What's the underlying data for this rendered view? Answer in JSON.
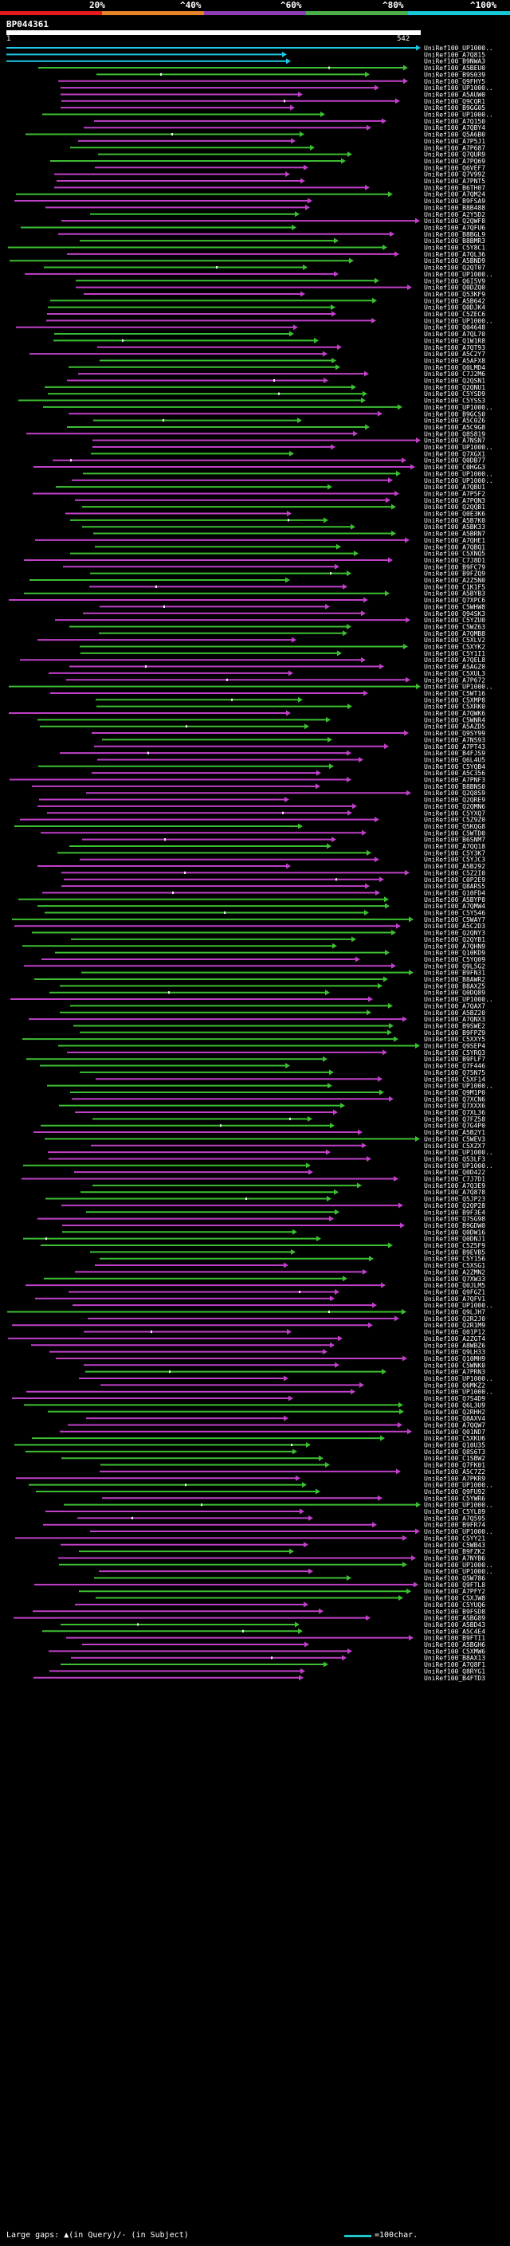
{
  "legend": {
    "labels": [
      "20%",
      "^40%",
      "^60%",
      "^80%",
      "^100%"
    ],
    "colors": [
      "#e41a1c",
      "#e7842a",
      "#8e3fb6",
      "#4daf4a",
      "#17c8d6"
    ]
  },
  "query": {
    "name": "BP044361",
    "start": "1",
    "end": "542"
  },
  "footer": {
    "text": "Large gaps: ▲(in Query)/- (in Subject)",
    "scale": "=100char."
  },
  "colors": {
    "cyan": "#1ec8e6",
    "green": "#3cbf32",
    "magenta": "#c040c8",
    "gap": "#ffffff"
  },
  "chart_data": {
    "type": "alignment-hits",
    "query_length": 542,
    "labels": [
      "UniRef100_UP1000..",
      "UniRef100_A7Q815",
      "UniRef100_B9NWA3",
      "UniRef100_A5BEU0",
      "UniRef100_B9S039",
      "UniRef100_Q9FHY5",
      "UniRef100_UP1000..",
      "UniRef100_A5AUW0",
      "UniRef100_Q9CQR1",
      "UniRef100_B9GG05",
      "UniRef100_UP1000..",
      "UniRef100_A7Q150",
      "UniRef100_A7QBY4",
      "UniRef100_Q5A6B0",
      "UniRef100_A7P5J1",
      "UniRef100_A7P687",
      "UniRef100_Q7QUR9",
      "UniRef100_A7PQ69",
      "UniRef100_Q6VEF7",
      "UniRef100_Q7V992",
      "UniRef100_A7PNT5",
      "UniRef100_B6TH07",
      "UniRef100_A7QM24",
      "UniRef100_B9FSA9",
      "UniRef100_B8B488",
      "UniRef100_A2Y5D2",
      "UniRef100_Q2QWF8",
      "UniRef100_A7QFU6",
      "UniRef100_B8BGL9",
      "UniRef100_B8BMR3",
      "UniRef100_C5Y8C1",
      "UniRef100_A7QL36",
      "UniRef100_A5BND9",
      "UniRef100_Q2QT07",
      "UniRef100_UP1000..",
      "UniRef100_Q6I5V9",
      "UniRef100_Q0DZQ0",
      "UniRef100_Q53KF9",
      "UniRef100_A5B642",
      "UniRef100_Q0DJK4",
      "UniRef100_C5ZEC6",
      "UniRef100_UP1000..",
      "UniRef100_Q04648",
      "UniRef100_A7QL70",
      "UniRef100_Q1W1R8",
      "UniRef100_A7QT93",
      "UniRef100_A5C2Y7",
      "UniRef100_A5AFX8",
      "UniRef100_Q0LMD4",
      "UniRef100_C7J2M6",
      "UniRef100_Q2QSN1",
      "UniRef100_Q2QNU1",
      "UniRef100_C5YSD9",
      "UniRef100_C5YSS3",
      "UniRef100_UP1000..",
      "UniRef100_B9GCS0",
      "UniRef100_A5C0Z6",
      "UniRef100_A5C9G8",
      "UniRef100_Q8S819",
      "UniRef100_A7NSN7",
      "UniRef100_UP1000..",
      "UniRef100_Q7XGX1",
      "UniRef100_Q0DB77",
      "UniRef100_C0HGG3",
      "UniRef100_UP1000..",
      "UniRef100_UP1000..",
      "UniRef100_A7QBU1",
      "UniRef100_A7P5F2",
      "UniRef100_A7PQN3",
      "UniRef100_Q2QQB1",
      "UniRef100_Q0E3K6",
      "UniRef100_A5B7K0",
      "UniRef100_A5BK33",
      "UniRef100_A5BRN7",
      "UniRef100_A7QHE1",
      "UniRef100_A7QBQ1",
      "UniRef100_C5XNQ5",
      "UniRef100_C7J8D1",
      "UniRef100_B9FC79",
      "UniRef100_B9FZQ9",
      "UniRef100_A2Z5N0",
      "UniRef100_C1K1F5",
      "UniRef100_A5BYB3",
      "UniRef100_Q7XPC6",
      "UniRef100_C5WHW8",
      "UniRef100_Q94SK3",
      "UniRef100_C5YZU0",
      "UniRef100_C5WZ63",
      "UniRef100_A7QMB8",
      "UniRef100_C5XLV2",
      "UniRef100_C5XYK2",
      "UniRef100_C5Y1I1",
      "UniRef100_A7QEL8",
      "UniRef100_A5AGZ0",
      "UniRef100_C5XUL3",
      "UniRef100_A7P672",
      "UniRef100_UP1000..",
      "UniRef100_C5WT16",
      "UniRef100_C5XMP8",
      "UniRef100_C5XRK0",
      "UniRef100_A7QWK6",
      "UniRef100_C5WNR4",
      "UniRef100_A5AZD5",
      "UniRef100_Q9SY99",
      "UniRef100_A7NS93",
      "UniRef100_A7PT43",
      "UniRef100_B4FJS9",
      "UniRef100_Q6L4U5",
      "UniRef100_C5YQB4",
      "UniRef100_A5C356",
      "UniRef100_A7PNF3",
      "UniRef100_B8BNS0",
      "UniRef100_Q2Q8S9",
      "UniRef100_Q2QRE9",
      "UniRef100_Q2QMN6",
      "UniRef100_C5YXQ7",
      "UniRef100_C5Z9Z0",
      "UniRef100_Q5KQG8",
      "UniRef100_C5WTD0",
      "UniRef100_B6SNM7",
      "UniRef100_A7QQ18",
      "UniRef100_C5Y3K7",
      "UniRef100_C5YJC3",
      "UniRef100_A5B292",
      "UniRef100_C5Z2I0",
      "UniRef100_C0P2E9",
      "UniRef100_Q8ARS5",
      "UniRef100_Q10FD4",
      "UniRef100_A5BYP8",
      "UniRef100_A7QMW4",
      "UniRef100_C5Y546",
      "UniRef100_C5WAY7",
      "UniRef100_A5C2D3",
      "UniRef100_Q2QNY3",
      "UniRef100_Q2QYB1",
      "UniRef100_A7QHN9",
      "UniRef100_Q10KD9",
      "UniRef100_C5YQ09",
      "UniRef100_Q9L5G2",
      "UniRef100_B9FN31",
      "UniRef100_B8AWR2",
      "UniRef100_B8AXZ5",
      "UniRef100_Q0DQ89",
      "UniRef100_UP1000..",
      "UniRef100_A7QAX7",
      "UniRef100_A5BZ20",
      "UniRef100_A7QNX3",
      "UniRef100_B9SWE2",
      "UniRef100_B9FPZ9",
      "UniRef100_C5XXY5",
      "UniRef100_Q9SEP4",
      "UniRef100_C5YRQ3",
      "UniRef100_B9FLF7",
      "UniRef100_Q7F446",
      "UniRef100_Q75N75",
      "UniRef100_C5XF14",
      "UniRef100_UP1000..",
      "UniRef100_Q9M1P0",
      "UniRef100_Q7XCN6",
      "UniRef100_Q7XXX6",
      "UniRef100_Q7XL36",
      "UniRef100_Q7FZ58",
      "UniRef100_Q7G4P0",
      "UniRef100_A5B2Y1",
      "UniRef100_C5WEV3",
      "UniRef100_C5XZX7",
      "UniRef100_UP1000..",
      "UniRef100_Q53LF3",
      "UniRef100_UP1000..",
      "UniRef100_Q0D422",
      "UniRef100_C7J7D1",
      "UniRef100_A7Q3E9",
      "UniRef100_A7Q878",
      "UniRef100_Q5JP23",
      "UniRef100_Q2QP28",
      "UniRef100_B9F3E4",
      "UniRef100_Q7SG98",
      "UniRef100_B9GDW0",
      "UniRef100_Q0DW16",
      "UniRef100_Q0DNJ1",
      "UniRef100_C5Z5F9",
      "UniRef100_B9EVB5",
      "UniRef100_C5Y156",
      "UniRef100_C5XSG1",
      "UniRef100_A2ZMN2",
      "UniRef100_Q7XW33",
      "UniRef100_Q0JLM5",
      "UniRef100_Q9FGZ1",
      "UniRef100_A7QFV1",
      "UniRef100_UP1000..",
      "UniRef100_Q9LJH7",
      "UniRef100_Q2R2J0",
      "UniRef100_Q2R1M9",
      "UniRef100_Q01P12",
      "UniRef100_A2ZGT4",
      "UniRef100_A8WBZ6",
      "UniRef100_Q9LH33",
      "UniRef100_Q10MH9",
      "UniRef100_C5WNK0",
      "UniRef100_A7PRN3",
      "UniRef100_UP1000..",
      "UniRef100_Q6MKZ2",
      "UniRef100_UP1000..",
      "UniRef100_Q7S4D9",
      "UniRef100_Q6L3U9",
      "UniRef100_Q2RHH2",
      "UniRef100_Q8AXV4",
      "UniRef100_A7QQW7",
      "UniRef100_Q01ND7",
      "UniRef100_C5XKU6",
      "UniRef100_Q10U35",
      "UniRef100_Q8S6T3",
      "UniRef100_C1SBW2",
      "UniRef100_Q7FK01",
      "UniRef100_A5C7Z2",
      "UniRef100_A7PKR9",
      "UniRef100_UP1000..",
      "UniRef100_Q9FU92",
      "UniRef100_C5YWR6",
      "UniRef100_UP1000..",
      "UniRef100_C5YL89",
      "UniRef100_A7Q595",
      "UniRef100_B9FR74",
      "UniRef100_UP1000..",
      "UniRef100_C5YY21",
      "UniRef100_C5WB43",
      "UniRef100_B9FZK2",
      "UniRef100_A7NYB6",
      "UniRef100_UP1000..",
      "UniRef100_UP1000..",
      "UniRef100_Q5W786",
      "UniRef100_Q9FTL8",
      "UniRef100_A7PFY2",
      "UniRef100_C5XJW8",
      "UniRef100_C5YUQ6",
      "UniRef100_B9FSD8",
      "UniRef100_A5BG89",
      "UniRef100_A5BD43",
      "UniRef100_A5C4E4",
      "UniRef100_B9FTI1",
      "UniRef100_A5BGH6",
      "UniRef100_C5XMW6",
      "UniRef100_B8AX13",
      "UniRef100_A7Q8F1",
      "UniRef100_Q8RYG1",
      "UniRef100_B4FTD3"
    ]
  }
}
